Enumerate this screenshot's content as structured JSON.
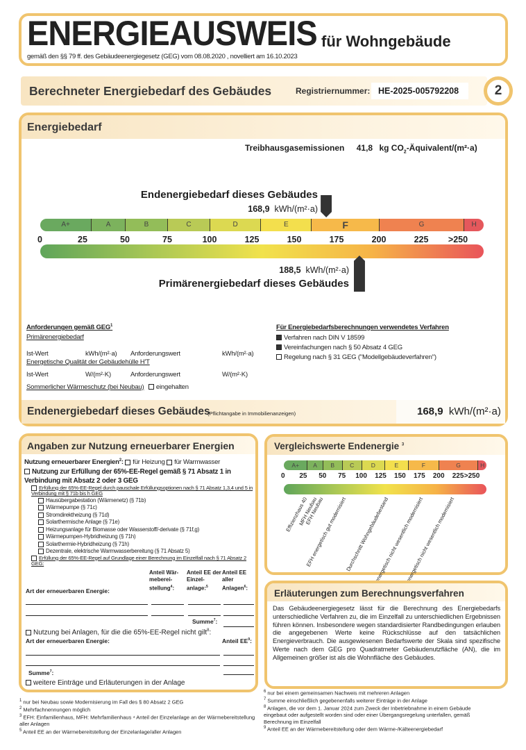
{
  "title": {
    "main": "ENERGIEAUSWEIS",
    "suffix": "für Wohngebäude",
    "legal": "gemäß den §§ 79 ff. des Gebäudeenergiegesetz (GEG) vom 08.08.2020 , novelliert am 16.10.2023"
  },
  "header": {
    "heading": "Berechneter Energiebedarf des Gebäudes",
    "reg_label": "Registriernummer:",
    "reg_value": "HE-2025-005792208",
    "page_number": "2"
  },
  "energiebedarf": {
    "heading": "Energiebedarf",
    "ghg_label": "Treibhausgasemissionen",
    "ghg_value": "41,8",
    "ghg_unit": "kg CO",
    "ghg_sub": "2",
    "ghg_unit2": "-Äquivalent/(m²·a)",
    "end_label": "Endenergiebedarf dieses Gebäudes",
    "end_value": "168,9",
    "end_unit": "kWh/(m²·a)",
    "primary_label": "Primärenergiebedarf dieses Gebäudes",
    "primary_value": "188,5",
    "primary_unit": "kWh/(m²·a)",
    "end_numeric": 168.9,
    "primary_numeric": 188.5
  },
  "scale": {
    "classes": [
      {
        "label": "A+",
        "from": 0,
        "to": 30,
        "color": "#6aa95f"
      },
      {
        "label": "A",
        "from": 30,
        "to": 50,
        "color": "#7cb25d"
      },
      {
        "label": "B",
        "from": 50,
        "to": 75,
        "color": "#93bd59"
      },
      {
        "label": "C",
        "from": 75,
        "to": 100,
        "color": "#b9ca56"
      },
      {
        "label": "D",
        "from": 100,
        "to": 130,
        "color": "#dcd951"
      },
      {
        "label": "E",
        "from": 130,
        "to": 160,
        "color": "#f3df4d"
      },
      {
        "label": "F",
        "from": 160,
        "to": 200,
        "color": "#f6b94a"
      },
      {
        "label": "G",
        "from": 200,
        "to": 250,
        "color": "#ef8250"
      },
      {
        "label": "H",
        "from": 250,
        "to": 262,
        "color": "#e5585c"
      }
    ],
    "ticks": [
      "0",
      "25",
      "50",
      "75",
      "100",
      "125",
      "150",
      "175",
      "200",
      "225",
      ">250"
    ],
    "highlighted_class": "F"
  },
  "requirements": {
    "heading": "Anforderungen gemäß GEG",
    "heading_sup": "1",
    "primary_heading": "Primärenergiebedarf",
    "ist": "Ist-Wert",
    "unit_kwh": "kWh/(m²·a)",
    "anf": "Anforderungswert",
    "envelope_heading": "Energetische Qualität der Gebäudehülle H'T",
    "unit_w": "W/(m²·K)",
    "summer": "Sommerlicher Wärmeschutz (bei Neubau)",
    "summer_check": "eingehalten"
  },
  "methods": {
    "heading": "Für Energiebedarfsberechnungen verwendetes Verfahren",
    "items": [
      {
        "label": "Verfahren nach DIN V 18599",
        "checked": true
      },
      {
        "label": "Vereinfachungen nach § 50 Absatz 4 GEG",
        "checked": true
      },
      {
        "label": "Regelung nach § 31 GEG (\"Modellgebäudeverfahren\")",
        "checked": false
      }
    ]
  },
  "end_summary": {
    "label": "Endenergiebedarf dieses Gebäudes",
    "note": "(Pflichtangabe in Immobilienanzeigen)",
    "value": "168,9",
    "unit": "kWh/(m²·a)"
  },
  "renewables": {
    "heading": "Angaben zur Nutzung erneuerbarer Energien",
    "usage_label": "Nutzung erneuerbarer Energien",
    "usage_sup": "2",
    "heating": "für Heizung",
    "water": "für Warmwasser",
    "rule65": "Nutzung zur Erfüllung der 65%-EE-Regel gemäß § 71 Absatz 1 in Verbindung mit Absatz 2 oder 3 GEG",
    "flat": "Erfüllung der 65%-EE-Regel durch pauschale Erfüllungsoptionen nach § 71 Absatz 1,3,4 und 5 in Verbindung mit § 71b bis h GEG",
    "options": [
      "Hausübergabestation (Wärmenetz) (§ 71b)",
      "Wärmepumpe (§ 71c)",
      "Stromdirektheizung (§ 71d)",
      "Solarthermische Anlage (§ 71e)",
      "Heizungsanlage für Biomasse oder Wasserstoff/-derivate (§ 71f,g)",
      "Wärmepumpen-Hybridheizung (§ 71h)",
      "Solarthermie-Hybridheizung (§ 71h)",
      "Dezentrale, elektrische Warmwasserbereitung (§ 71 Absatz 5)"
    ],
    "individual": "Erfüllung der 65%-EE-Regel auf Grundlage einer Berechnung im Einzelfall nach § 71 Absatz 2 GEG:",
    "col_type": "Art der erneuerbaren Energie:",
    "col1": "Anteil Wär-meberei-stellung",
    "col1_sup": "4",
    "col2": "Anteil EE der Einzel-anlage:",
    "col2_sup": "5",
    "col3": "Anteil EE aller Anlagen",
    "col3_sup": "6",
    "sum": "Summe",
    "sum_sup": "7",
    "other": "Nutzung bei Anlagen, für die die 65%-EE-Regel nicht gilt",
    "other_sup": "8",
    "col_share": "Anteil EE",
    "col_share_sup": "9",
    "more": "weitere Einträge und Erläuterungen in der Anlage"
  },
  "comparison": {
    "heading": "Vergleichswerte Endenergie",
    "heading_sup": "3",
    "labels": [
      {
        "text": "Effizienzhaus 40",
        "value": 25
      },
      {
        "text": "MFH Neubau",
        "value": 38
      },
      {
        "text": "EFH Neubau",
        "value": 46
      },
      {
        "text": "EFH energetisch gut modernisiert",
        "value": 75
      },
      {
        "text": "Durchschnitt Wohngebäudebestand",
        "value": 130
      },
      {
        "text": "MFH energetisch nicht wesentlich modernisiert",
        "value": 175
      },
      {
        "text": "EFH energetisch nicht wesentlich modernisiert",
        "value": 215
      }
    ]
  },
  "explanation": {
    "heading": "Erläuterungen zum Berechnungsverfahren",
    "text": "Das Gebäudeenergiegesetz lässt für die Berechnung des Energiebedarfs unterschiedliche Verfahren zu, die im Einzelfall zu unterschiedlichen Ergebnissen führen können. Insbesondere wegen standardisierter Randbedingungen erlauben die angegebenen Werte keine Rückschlüsse auf den tatsächlichen Energieverbrauch. Die ausgewiesenen Bedarfswerte der Skala sind spezifische Werte nach dem GEG pro Quadratmeter Gebäudenutzfläche (AN), die im Allgemeinen größer ist als die Wohnfläche des Gebäudes."
  },
  "footnotes_left": [
    {
      "n": "1",
      "t": "nur bei Neubau sowie Modernisierung im Fall des § 80 Absatz 2 GEG"
    },
    {
      "n": "2",
      "t": "Mehrfachnennungen möglich"
    },
    {
      "n": "3",
      "t": "EFH: Einfamilienhaus, MFH: Mehrfamilienhaus ⁴ Anteil der Einzelanlage an der Wärmebereitstellung aller Anlagen"
    },
    {
      "n": "5",
      "t": "Anteil EE an der Wärmebereitstellung der Einzelanlage/aller Anlagen"
    }
  ],
  "footnotes_right": [
    {
      "n": "6",
      "t": "nur bei einem gemeinsamen Nachweis mit mehreren Anlagen"
    },
    {
      "n": "7",
      "t": "Summe einschließlich gegebenenfalls weiterer Einträge in der Anlage"
    },
    {
      "n": "8",
      "t": "Anlagen, die vor dem 1. Januar 2024 zum Zweck der Inbetriebnahme in einem Gebäude eingebaut oder aufgestellt worden sind oder einer Übergangsregelung unterfallen, gemäß Berechnung im Einzelfall"
    },
    {
      "n": "9",
      "t": "Anteil EE an der Wärmebereitstellung oder dem Wärme-/Kälteenergiebedarf"
    }
  ],
  "colors": {
    "border": "#f0c46e",
    "header_band": "#f8e5c2",
    "gradient": [
      "#5fa55a",
      "#a9c755",
      "#f1e24c",
      "#f6b347",
      "#e9545a"
    ]
  }
}
